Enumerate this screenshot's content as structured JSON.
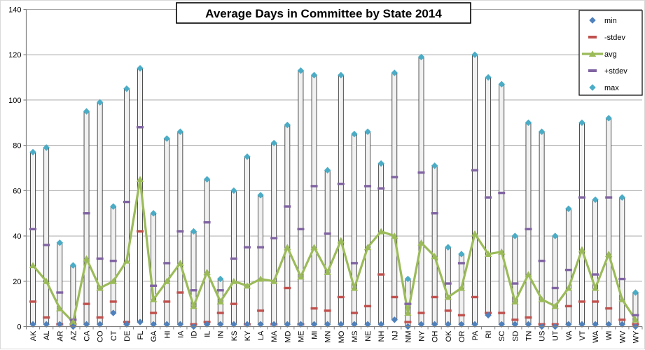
{
  "chart": {
    "title": "Average Days in Committee by State 2014",
    "legend": [
      {
        "label": "min",
        "symbol": "diamond",
        "color": "#4F81BD"
      },
      {
        "label": "-stdev",
        "symbol": "dash",
        "color": "#C0504D"
      },
      {
        "label": "avg",
        "symbol": "line-triangle",
        "color": "#9BBB59"
      },
      {
        "label": "+stdev",
        "symbol": "dash",
        "color": "#8064A2"
      },
      {
        "label": "max",
        "symbol": "diamond",
        "color": "#4BACC6"
      }
    ]
  },
  "chart_data": {
    "type": "line",
    "style": "hi-lo-stock-with-markers",
    "title": "Average Days in Committee by State 2014",
    "xlabel": "",
    "ylabel": "",
    "ylim": [
      0,
      140
    ],
    "y_step": 20,
    "y_tick_labels": [
      "0",
      "20",
      "40",
      "60",
      "80",
      "100",
      "120",
      "140"
    ],
    "grid": true,
    "hi_lo_bars": true,
    "legend_position": "top-right",
    "categories": [
      "AK",
      "AL",
      "AR",
      "AZ",
      "CA",
      "CO",
      "CT",
      "DE",
      "FL",
      "GA",
      "HI",
      "IA",
      "ID",
      "IL",
      "IN",
      "KS",
      "KY",
      "LA",
      "MA",
      "MD",
      "ME",
      "MI",
      "MN",
      "MO",
      "MS",
      "NE",
      "NH",
      "NJ",
      "NM",
      "NY",
      "OH",
      "OK",
      "OR",
      "PA",
      "RI",
      "SC",
      "SD",
      "TN",
      "US",
      "UT",
      "VA",
      "VT",
      "WA",
      "WI",
      "WV",
      "WY"
    ],
    "series": [
      {
        "name": "min",
        "marker": "diamond",
        "color": "#4F81BD",
        "values": [
          1,
          1,
          1,
          0,
          1,
          1,
          6,
          1,
          2,
          1,
          1,
          1,
          0,
          1,
          1,
          1,
          1,
          1,
          1,
          1,
          1,
          1,
          1,
          1,
          1,
          1,
          1,
          3,
          0,
          1,
          1,
          1,
          1,
          1,
          5,
          1,
          1,
          1,
          0,
          0,
          1,
          1,
          1,
          1,
          1,
          0
        ]
      },
      {
        "name": "-stdev",
        "marker": "dash",
        "color": "#C0504D",
        "values": [
          11,
          4,
          1,
          1,
          10,
          4,
          11,
          2,
          42,
          6,
          11,
          15,
          1,
          2,
          6,
          10,
          1,
          7,
          1,
          17,
          1,
          8,
          7,
          13,
          6,
          9,
          23,
          13,
          2,
          6,
          13,
          7,
          5,
          13,
          6,
          6,
          3,
          4,
          1,
          1,
          9,
          11,
          11,
          8,
          3,
          1
        ]
      },
      {
        "name": "avg",
        "marker": "triangle-line",
        "color": "#9BBB59",
        "values": [
          27,
          20,
          8,
          2,
          30,
          17,
          20,
          29,
          65,
          12,
          20,
          28,
          9,
          24,
          11,
          20,
          18,
          21,
          20,
          35,
          22,
          35,
          24,
          38,
          17,
          35,
          42,
          40,
          6,
          37,
          31,
          13,
          17,
          41,
          32,
          33,
          11,
          23,
          12,
          9,
          17,
          34,
          17,
          32,
          12,
          3
        ]
      },
      {
        "name": "+stdev",
        "marker": "dash",
        "color": "#8064A2",
        "values": [
          43,
          36,
          15,
          3,
          50,
          30,
          29,
          55,
          88,
          18,
          28,
          42,
          16,
          46,
          16,
          30,
          35,
          35,
          39,
          53,
          43,
          62,
          41,
          63,
          28,
          62,
          61,
          66,
          10,
          68,
          50,
          19,
          28,
          69,
          57,
          59,
          19,
          43,
          29,
          17,
          25,
          57,
          23,
          57,
          21,
          5
        ]
      },
      {
        "name": "max",
        "marker": "diamond",
        "color": "#4BACC6",
        "values": [
          77,
          79,
          37,
          27,
          95,
          99,
          53,
          105,
          114,
          50,
          83,
          86,
          42,
          65,
          21,
          60,
          75,
          58,
          81,
          89,
          113,
          111,
          69,
          111,
          85,
          86,
          72,
          112,
          21,
          119,
          71,
          35,
          32,
          120,
          110,
          107,
          40,
          90,
          86,
          40,
          52,
          90,
          56,
          92,
          57,
          15
        ]
      }
    ]
  }
}
